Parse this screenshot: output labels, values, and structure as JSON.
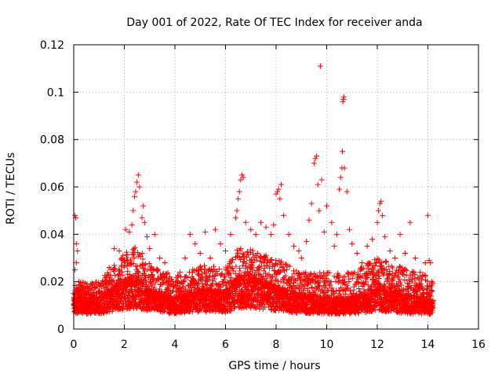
{
  "chart_data": {
    "type": "scatter",
    "title": "Day 001 of 2022, Rate Of TEC Index for receiver anda",
    "xlabel": "GPS time / hours",
    "ylabel": "ROTI / TECUs",
    "xlim": [
      0,
      16
    ],
    "ylim": [
      0,
      0.12
    ],
    "x_ticks": [
      0,
      2,
      4,
      6,
      8,
      10,
      12,
      14,
      16
    ],
    "x_tick_labels": [
      "0",
      "2",
      "4",
      "6",
      "8",
      "10",
      "12",
      "14",
      "16"
    ],
    "y_ticks": [
      0,
      0.02,
      0.04,
      0.06,
      0.08,
      0.1,
      0.12
    ],
    "y_tick_labels": [
      "0",
      "0.02",
      "0.04",
      "0.06",
      "0.08",
      "0.1",
      "0.12"
    ],
    "grid": true,
    "marker": "plus",
    "color": "#ff0000",
    "series": [
      {
        "name": "ROTI",
        "points": [
          [
            0.0,
            0.012
          ],
          [
            0.05,
            0.048
          ],
          [
            0.08,
            0.047
          ],
          [
            0.1,
            0.036
          ],
          [
            0.15,
            0.033
          ],
          [
            0.1,
            0.028
          ],
          [
            0.05,
            0.025
          ],
          [
            0.2,
            0.02
          ],
          [
            0.3,
            0.018
          ],
          [
            0.4,
            0.015
          ],
          [
            0.6,
            0.012
          ],
          [
            0.8,
            0.014
          ],
          [
            1.0,
            0.016
          ],
          [
            1.2,
            0.02
          ],
          [
            1.4,
            0.026
          ],
          [
            1.6,
            0.034
          ],
          [
            1.8,
            0.033
          ],
          [
            1.9,
            0.03
          ],
          [
            2.0,
            0.028
          ],
          [
            2.05,
            0.042
          ],
          [
            2.2,
            0.041
          ],
          [
            2.3,
            0.044
          ],
          [
            2.35,
            0.05
          ],
          [
            2.4,
            0.056
          ],
          [
            2.45,
            0.058
          ],
          [
            2.5,
            0.062
          ],
          [
            2.55,
            0.065
          ],
          [
            2.6,
            0.06
          ],
          [
            2.7,
            0.047
          ],
          [
            2.75,
            0.052
          ],
          [
            2.8,
            0.045
          ],
          [
            2.9,
            0.039
          ],
          [
            3.0,
            0.034
          ],
          [
            3.2,
            0.04
          ],
          [
            3.4,
            0.03
          ],
          [
            3.6,
            0.028
          ],
          [
            3.8,
            0.022
          ],
          [
            4.0,
            0.018
          ],
          [
            4.2,
            0.024
          ],
          [
            4.4,
            0.03
          ],
          [
            4.6,
            0.04
          ],
          [
            4.8,
            0.036
          ],
          [
            5.0,
            0.032
          ],
          [
            5.2,
            0.041
          ],
          [
            5.4,
            0.03
          ],
          [
            5.6,
            0.042
          ],
          [
            5.8,
            0.036
          ],
          [
            6.0,
            0.033
          ],
          [
            6.2,
            0.04
          ],
          [
            6.4,
            0.047
          ],
          [
            6.45,
            0.05
          ],
          [
            6.5,
            0.055
          ],
          [
            6.55,
            0.058
          ],
          [
            6.6,
            0.063
          ],
          [
            6.65,
            0.065
          ],
          [
            6.7,
            0.064
          ],
          [
            6.8,
            0.045
          ],
          [
            7.0,
            0.042
          ],
          [
            7.2,
            0.04
          ],
          [
            7.4,
            0.045
          ],
          [
            7.6,
            0.043
          ],
          [
            7.8,
            0.04
          ],
          [
            7.9,
            0.044
          ],
          [
            8.0,
            0.057
          ],
          [
            8.05,
            0.058
          ],
          [
            8.1,
            0.059
          ],
          [
            8.15,
            0.055
          ],
          [
            8.2,
            0.061
          ],
          [
            8.3,
            0.048
          ],
          [
            8.5,
            0.04
          ],
          [
            8.7,
            0.035
          ],
          [
            8.9,
            0.033
          ],
          [
            9.0,
            0.03
          ],
          [
            9.2,
            0.037
          ],
          [
            9.3,
            0.046
          ],
          [
            9.4,
            0.053
          ],
          [
            9.5,
            0.07
          ],
          [
            9.55,
            0.072
          ],
          [
            9.6,
            0.073
          ],
          [
            9.65,
            0.061
          ],
          [
            9.7,
            0.05
          ],
          [
            9.75,
            0.111
          ],
          [
            9.8,
            0.063
          ],
          [
            9.9,
            0.041
          ],
          [
            10.0,
            0.052
          ],
          [
            10.2,
            0.045
          ],
          [
            10.3,
            0.035
          ],
          [
            10.4,
            0.04
          ],
          [
            10.5,
            0.059
          ],
          [
            10.55,
            0.064
          ],
          [
            10.6,
            0.068
          ],
          [
            10.62,
            0.075
          ],
          [
            10.64,
            0.096
          ],
          [
            10.66,
            0.097
          ],
          [
            10.68,
            0.098
          ],
          [
            10.7,
            0.068
          ],
          [
            10.8,
            0.058
          ],
          [
            10.9,
            0.042
          ],
          [
            11.0,
            0.036
          ],
          [
            11.2,
            0.032
          ],
          [
            11.4,
            0.028
          ],
          [
            11.6,
            0.035
          ],
          [
            11.8,
            0.038
          ],
          [
            12.0,
            0.045
          ],
          [
            12.05,
            0.05
          ],
          [
            12.1,
            0.053
          ],
          [
            12.15,
            0.054
          ],
          [
            12.2,
            0.048
          ],
          [
            12.3,
            0.039
          ],
          [
            12.5,
            0.033
          ],
          [
            12.7,
            0.03
          ],
          [
            12.9,
            0.04
          ],
          [
            13.1,
            0.032
          ],
          [
            13.3,
            0.045
          ],
          [
            13.5,
            0.03
          ],
          [
            13.7,
            0.024
          ],
          [
            13.9,
            0.028
          ],
          [
            14.0,
            0.048
          ],
          [
            14.05,
            0.029
          ],
          [
            14.1,
            0.028
          ],
          [
            14.15,
            0.02
          ],
          [
            14.2,
            0.012
          ]
        ]
      }
    ],
    "dense_band": {
      "x_range": [
        0,
        14.2
      ],
      "y_floor": 0.004,
      "typical": [
        [
          0.0,
          0.012
        ],
        [
          1.0,
          0.012
        ],
        [
          2.0,
          0.018
        ],
        [
          2.5,
          0.02
        ],
        [
          3.0,
          0.015
        ],
        [
          4.0,
          0.012
        ],
        [
          5.0,
          0.015
        ],
        [
          6.0,
          0.014
        ],
        [
          6.5,
          0.02
        ],
        [
          7.0,
          0.02
        ],
        [
          8.0,
          0.016
        ],
        [
          9.0,
          0.013
        ],
        [
          10.0,
          0.012
        ],
        [
          11.0,
          0.012
        ],
        [
          12.0,
          0.016
        ],
        [
          13.0,
          0.013
        ],
        [
          14.2,
          0.011
        ]
      ],
      "upper": [
        [
          0.0,
          0.02
        ],
        [
          1.0,
          0.02
        ],
        [
          2.0,
          0.032
        ],
        [
          2.5,
          0.036
        ],
        [
          3.0,
          0.028
        ],
        [
          4.0,
          0.022
        ],
        [
          5.0,
          0.027
        ],
        [
          6.0,
          0.026
        ],
        [
          6.5,
          0.034
        ],
        [
          7.0,
          0.034
        ],
        [
          8.0,
          0.03
        ],
        [
          9.0,
          0.024
        ],
        [
          10.0,
          0.024
        ],
        [
          11.0,
          0.024
        ],
        [
          12.0,
          0.03
        ],
        [
          13.0,
          0.026
        ],
        [
          14.2,
          0.022
        ]
      ]
    }
  }
}
